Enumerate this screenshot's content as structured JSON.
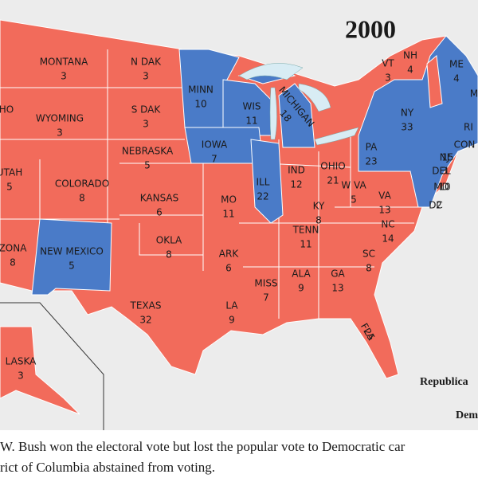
{
  "title": "2000",
  "states": [
    {
      "name": "MONTANA",
      "votes": 3,
      "color": "#f26b5b"
    },
    {
      "name": "N DAK",
      "votes": 3,
      "color": "#f26b5b"
    },
    {
      "name": "HO",
      "color": "#f26b5b"
    },
    {
      "name": "WYOMING",
      "votes": 3,
      "color": "#f26b5b"
    },
    {
      "name": "S DAK",
      "votes": 3,
      "color": "#f26b5b"
    },
    {
      "name": "MINN",
      "votes": 10,
      "color": "#4a7bc8"
    },
    {
      "name": "WIS",
      "votes": 11,
      "color": "#4a7bc8"
    },
    {
      "name": "MICHIGAN",
      "votes": 18,
      "color": "#4a7bc8"
    },
    {
      "name": "IOWA",
      "votes": 7,
      "color": "#4a7bc8"
    },
    {
      "name": "NEBRASKA",
      "votes": 5,
      "color": "#f26b5b"
    },
    {
      "name": "UTAH",
      "votes": 5,
      "color": "#f26b5b"
    },
    {
      "name": "COLORADO",
      "votes": 8,
      "color": "#f26b5b"
    },
    {
      "name": "KANSAS",
      "votes": 6,
      "color": "#f26b5b"
    },
    {
      "name": "ILL",
      "votes": 22,
      "color": "#4a7bc8"
    },
    {
      "name": "IND",
      "votes": 12,
      "color": "#f26b5b"
    },
    {
      "name": "OHIO",
      "votes": 21,
      "color": "#f26b5b"
    },
    {
      "name": "MO",
      "votes": 11,
      "color": "#f26b5b"
    },
    {
      "name": "KY",
      "votes": 8,
      "color": "#f26b5b"
    },
    {
      "name": "W VA",
      "votes": 5,
      "color": "#f26b5b"
    },
    {
      "name": "VA",
      "votes": 13,
      "color": "#f26b5b"
    },
    {
      "name": "PA",
      "votes": 23,
      "color": "#4a7bc8"
    },
    {
      "name": "NY",
      "votes": 33,
      "color": "#4a7bc8"
    },
    {
      "name": "VT",
      "votes": 3,
      "color": "#4a7bc8"
    },
    {
      "name": "NH",
      "votes": 4,
      "color": "#f26b5b"
    },
    {
      "name": "ME",
      "votes": 4,
      "color": "#4a7bc8"
    },
    {
      "name": "M",
      "color": "#4a7bc8"
    },
    {
      "name": "RI",
      "color": "#4a7bc8"
    },
    {
      "name": "CON",
      "color": "#4a7bc8"
    },
    {
      "name": "NJ",
      "votes": 15,
      "color": "#4a7bc8"
    },
    {
      "name": "DEL",
      "votes": 3,
      "color": "#4a7bc8"
    },
    {
      "name": "MD",
      "votes": 10,
      "color": "#4a7bc8"
    },
    {
      "name": "DC",
      "votes": 2,
      "color": "#4a7bc8"
    },
    {
      "name": "NEW MEXICO",
      "votes": 5,
      "color": "#4a7bc8"
    },
    {
      "name": "ZONA",
      "votes": 8,
      "color": "#f26b5b"
    },
    {
      "name": "OKLA",
      "votes": 8,
      "color": "#f26b5b"
    },
    {
      "name": "ARK",
      "votes": 6,
      "color": "#f26b5b"
    },
    {
      "name": "TENN",
      "votes": 11,
      "color": "#f26b5b"
    },
    {
      "name": "NC",
      "votes": 14,
      "color": "#f26b5b"
    },
    {
      "name": "SC",
      "votes": 8,
      "color": "#f26b5b"
    },
    {
      "name": "GA",
      "votes": 13,
      "color": "#f26b5b"
    },
    {
      "name": "ALA",
      "votes": 9,
      "color": "#f26b5b"
    },
    {
      "name": "MISS",
      "votes": 7,
      "color": "#f26b5b"
    },
    {
      "name": "LA",
      "votes": 9,
      "color": "#f26b5b"
    },
    {
      "name": "TEXAS",
      "votes": 32,
      "color": "#f26b5b"
    },
    {
      "name": "FLA",
      "votes": 25,
      "color": "#f26b5b"
    },
    {
      "name": "LASKA",
      "votes": 3,
      "color": "#f26b5b"
    }
  ],
  "legend": [
    "Republica",
    "Dem"
  ],
  "caption": [
    "W. Bush won the electoral vote but lost the popular vote to Democratic car",
    "rict of Columbia abstained from voting."
  ]
}
